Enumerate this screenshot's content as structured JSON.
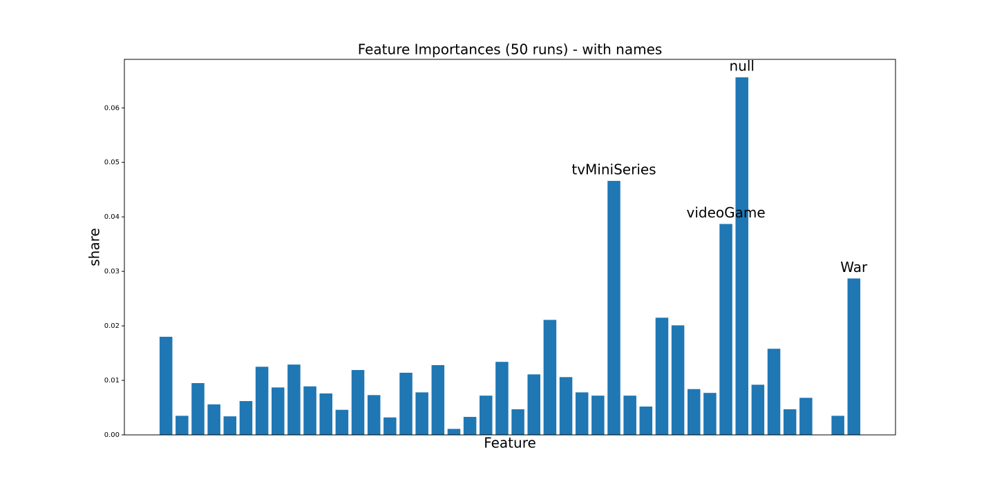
{
  "chart_data": {
    "type": "bar",
    "title": "Feature Importances (50 runs) - with names",
    "xlabel": "Feature",
    "ylabel": "share",
    "color": "#1f77b4",
    "categories": [
      null,
      null,
      null,
      null,
      null,
      null,
      null,
      null,
      null,
      null,
      null,
      null,
      null,
      null,
      null,
      null,
      null,
      null,
      null,
      null,
      null,
      null,
      null,
      null,
      null,
      null,
      null,
      null,
      null,
      null,
      null,
      null,
      null,
      null,
      null,
      null,
      null,
      null,
      null,
      null,
      null,
      null,
      null,
      null
    ],
    "values": [
      0.018,
      0.0035,
      0.0095,
      0.0056,
      0.0034,
      0.0062,
      0.0125,
      0.0087,
      0.0129,
      0.0089,
      0.0076,
      0.0046,
      0.0119,
      0.0073,
      0.0032,
      0.0114,
      0.0078,
      0.0128,
      0.0011,
      0.0033,
      0.0072,
      0.0134,
      0.0047,
      0.0111,
      0.0211,
      0.0106,
      0.0078,
      0.0072,
      0.0466,
      0.0072,
      0.0052,
      0.0215,
      0.0201,
      0.0084,
      0.0077,
      0.0387,
      0.0656,
      0.0092,
      0.0158,
      0.0047,
      0.0068,
      0,
      0.0035,
      0.0287
    ],
    "annotations": [
      {
        "text": "tvMiniSeries",
        "x": 28
      },
      {
        "text": "videoGame",
        "x": 35
      },
      {
        "text": "null",
        "x": 36
      },
      {
        "text": "War",
        "x": 43
      }
    ],
    "xlim": [
      -2.6,
      45.6
    ],
    "ylim": [
      0,
      0.0689
    ],
    "yticks": [
      {
        "value": 0,
        "label": "0.00"
      },
      {
        "value": 0.01,
        "label": "0.01"
      },
      {
        "value": 0.02,
        "label": "0.02"
      },
      {
        "value": 0.03,
        "label": "0.03"
      },
      {
        "value": 0.04,
        "label": "0.04"
      },
      {
        "value": 0.05,
        "label": "0.05"
      },
      {
        "value": 0.06,
        "label": "0.06"
      }
    ],
    "grid": false
  }
}
